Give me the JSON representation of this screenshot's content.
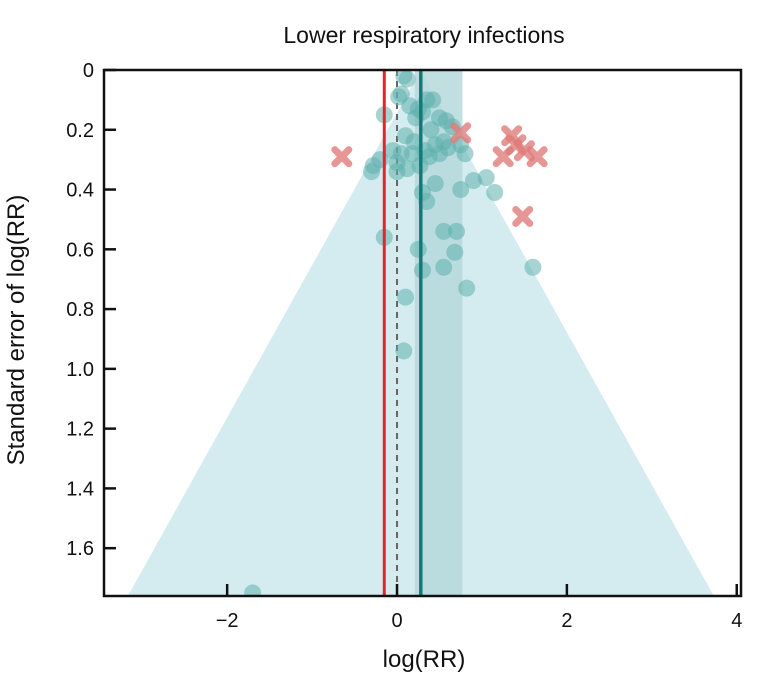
{
  "chart_data": {
    "type": "scatter",
    "title": "Lower respiratory infections",
    "xlabel": "log(RR)",
    "ylabel": "Standard error of log(RR)",
    "xlim": [
      -3.45,
      4.05
    ],
    "ylim": [
      0,
      1.76
    ],
    "y_inverted": true,
    "x_ticks": [
      -2,
      0,
      2,
      4
    ],
    "x_tick_labels": [
      "−2",
      "0",
      "2",
      "4"
    ],
    "y_ticks": [
      0,
      0.2,
      0.4,
      0.6,
      0.8,
      1.0,
      1.2,
      1.4,
      1.6
    ],
    "y_tick_labels": [
      "0",
      "0.2",
      "0.4",
      "0.6",
      "0.8",
      "1.0",
      "1.2",
      "1.4",
      "1.6"
    ],
    "grid": false,
    "legend": "none",
    "funnel": {
      "apex_x": 0.28,
      "half_width_per_se": 1.96
    },
    "pooled_estimate": 0.28,
    "pooled_ci": [
      0.21,
      0.77
    ],
    "reference_line": -0.15,
    "null_line": 0,
    "colors": {
      "funnel": "#d4ecef",
      "ci_band": "#b6d9db",
      "pooled_line": "#137a78",
      "reference_line": "#e8222e",
      "study_points": "#5fb0ad",
      "outlier_points": "#e07c7a",
      "null_line": "#666666"
    },
    "series": [
      {
        "kind": "included",
        "points": [
          {
            "x": 0.08,
            "y": 0.02
          },
          {
            "x": 0.12,
            "y": 0.03
          },
          {
            "x": 0.05,
            "y": 0.08
          },
          {
            "x": 0.02,
            "y": 0.09
          },
          {
            "x": 0.35,
            "y": 0.1
          },
          {
            "x": 0.42,
            "y": 0.1
          },
          {
            "x": 0.15,
            "y": 0.12
          },
          {
            "x": 0.25,
            "y": 0.13
          },
          {
            "x": 0.3,
            "y": 0.14
          },
          {
            "x": -0.15,
            "y": 0.15
          },
          {
            "x": 0.22,
            "y": 0.16
          },
          {
            "x": 0.5,
            "y": 0.16
          },
          {
            "x": 0.58,
            "y": 0.17
          },
          {
            "x": 0.65,
            "y": 0.19
          },
          {
            "x": 0.4,
            "y": 0.2
          },
          {
            "x": 0.1,
            "y": 0.22
          },
          {
            "x": 0.2,
            "y": 0.24
          },
          {
            "x": 0.45,
            "y": 0.25
          },
          {
            "x": 0.55,
            "y": 0.24
          },
          {
            "x": 0.75,
            "y": 0.25
          },
          {
            "x": 0.33,
            "y": 0.27
          },
          {
            "x": 0.6,
            "y": 0.26
          },
          {
            "x": 0.18,
            "y": 0.28
          },
          {
            "x": 0.38,
            "y": 0.29
          },
          {
            "x": 0.5,
            "y": 0.28
          },
          {
            "x": 0.8,
            "y": 0.28
          },
          {
            "x": -0.05,
            "y": 0.27
          },
          {
            "x": 0.05,
            "y": 0.28
          },
          {
            "x": -0.2,
            "y": 0.3
          },
          {
            "x": -0.28,
            "y": 0.32
          },
          {
            "x": 0.0,
            "y": 0.31
          },
          {
            "x": 0.27,
            "y": 0.32
          },
          {
            "x": 0.12,
            "y": 0.33
          },
          {
            "x": 0.0,
            "y": 0.34
          },
          {
            "x": -0.3,
            "y": 0.34
          },
          {
            "x": 0.9,
            "y": 0.37
          },
          {
            "x": 1.05,
            "y": 0.36
          },
          {
            "x": 0.45,
            "y": 0.38
          },
          {
            "x": 0.75,
            "y": 0.4
          },
          {
            "x": 1.15,
            "y": 0.41
          },
          {
            "x": 0.3,
            "y": 0.41
          },
          {
            "x": 0.35,
            "y": 0.44
          },
          {
            "x": 0.55,
            "y": 0.54
          },
          {
            "x": 0.7,
            "y": 0.54
          },
          {
            "x": -0.15,
            "y": 0.56
          },
          {
            "x": 0.25,
            "y": 0.6
          },
          {
            "x": 0.68,
            "y": 0.61
          },
          {
            "x": 0.55,
            "y": 0.66
          },
          {
            "x": 0.3,
            "y": 0.67
          },
          {
            "x": 1.6,
            "y": 0.66
          },
          {
            "x": 0.82,
            "y": 0.73
          },
          {
            "x": 0.1,
            "y": 0.76
          },
          {
            "x": 0.08,
            "y": 0.94
          },
          {
            "x": -1.7,
            "y": 1.75
          }
        ]
      },
      {
        "kind": "excluded",
        "points": [
          {
            "x": -0.65,
            "y": 0.29
          },
          {
            "x": 0.75,
            "y": 0.21
          },
          {
            "x": 1.35,
            "y": 0.22
          },
          {
            "x": 1.4,
            "y": 0.25
          },
          {
            "x": 1.5,
            "y": 0.27
          },
          {
            "x": 1.25,
            "y": 0.29
          },
          {
            "x": 1.65,
            "y": 0.29
          },
          {
            "x": 1.48,
            "y": 0.49
          }
        ]
      }
    ]
  }
}
